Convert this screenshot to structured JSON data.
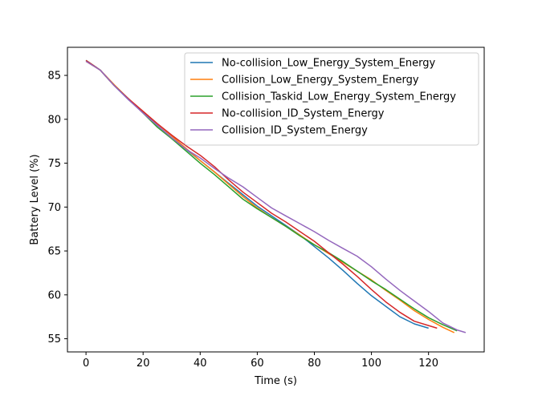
{
  "chart_data": {
    "type": "line",
    "title": "",
    "xlabel": "Time (s)",
    "ylabel": "Battery Level (%)",
    "xlim": [
      -6.5,
      139.5
    ],
    "ylim": [
      53.5,
      88.2
    ],
    "xticks": [
      0,
      20,
      40,
      60,
      80,
      100,
      120
    ],
    "yticks": [
      55,
      60,
      65,
      70,
      75,
      80,
      85
    ],
    "grid": false,
    "legend_position": "top-right",
    "series": [
      {
        "name": "No-collision_Low_Energy_System_Energy",
        "color": "#1f77b4",
        "x": [
          0,
          5,
          10,
          15,
          20,
          25,
          30,
          35,
          40,
          45,
          50,
          55,
          60,
          65,
          70,
          75,
          80,
          85,
          90,
          95,
          100,
          105,
          110,
          115,
          120
        ],
        "y": [
          86.7,
          85.6,
          83.8,
          82.2,
          80.8,
          79.3,
          77.9,
          76.6,
          75.3,
          74.0,
          72.7,
          71.4,
          70.1,
          69.0,
          67.9,
          66.8,
          65.5,
          64.2,
          62.8,
          61.3,
          59.9,
          58.7,
          57.5,
          56.7,
          56.2
        ]
      },
      {
        "name": "Collision_Low_Energy_System_Energy",
        "color": "#ff7f0e",
        "x": [
          0,
          5,
          10,
          15,
          20,
          25,
          30,
          35,
          40,
          45,
          50,
          55,
          60,
          65,
          70,
          75,
          80,
          85,
          90,
          95,
          100,
          105,
          110,
          115,
          120,
          125,
          129
        ],
        "y": [
          86.6,
          85.6,
          83.9,
          82.3,
          80.9,
          79.5,
          78.1,
          76.7,
          75.3,
          74.0,
          72.6,
          71.2,
          69.9,
          68.8,
          67.8,
          66.8,
          65.7,
          64.7,
          63.7,
          62.7,
          61.7,
          60.5,
          59.4,
          58.2,
          57.2,
          56.3,
          55.7
        ]
      },
      {
        "name": "Collision_Taskid_Low_Energy_System_Energy",
        "color": "#2ca02c",
        "x": [
          0,
          5,
          10,
          15,
          20,
          25,
          30,
          35,
          40,
          45,
          50,
          55,
          60,
          65,
          70,
          75,
          80,
          85,
          90,
          95,
          100,
          105,
          110,
          115,
          120,
          125,
          130
        ],
        "y": [
          86.7,
          85.6,
          83.8,
          82.3,
          80.7,
          79.1,
          77.8,
          76.4,
          75.0,
          73.7,
          72.3,
          70.9,
          69.8,
          68.8,
          67.8,
          66.7,
          65.7,
          64.8,
          63.8,
          62.7,
          61.6,
          60.6,
          59.5,
          58.4,
          57.4,
          56.6,
          55.9
        ]
      },
      {
        "name": "No-collision_ID_System_Energy",
        "color": "#d62728",
        "x": [
          0,
          5,
          10,
          15,
          20,
          25,
          30,
          35,
          40,
          45,
          50,
          55,
          60,
          65,
          70,
          75,
          80,
          85,
          90,
          95,
          100,
          105,
          110,
          115,
          120,
          123
        ],
        "y": [
          86.7,
          85.6,
          83.8,
          82.3,
          80.9,
          79.5,
          78.2,
          77.0,
          75.9,
          74.6,
          73.1,
          71.7,
          70.5,
          69.3,
          68.3,
          67.2,
          66.1,
          64.8,
          63.5,
          62.1,
          60.6,
          59.2,
          58.0,
          57.0,
          56.5,
          56.2
        ]
      },
      {
        "name": "Collision_ID_System_Energy",
        "color": "#9467bd",
        "x": [
          0,
          5,
          10,
          15,
          20,
          25,
          30,
          35,
          40,
          45,
          50,
          55,
          60,
          65,
          70,
          75,
          80,
          85,
          90,
          95,
          100,
          105,
          110,
          115,
          120,
          125,
          130,
          133
        ],
        "y": [
          86.6,
          85.6,
          83.8,
          82.2,
          80.7,
          79.3,
          77.9,
          76.6,
          75.6,
          74.4,
          73.3,
          72.3,
          71.1,
          69.9,
          69.0,
          68.1,
          67.2,
          66.2,
          65.3,
          64.4,
          63.2,
          61.8,
          60.5,
          59.3,
          58.1,
          56.8,
          56.0,
          55.7
        ]
      }
    ]
  }
}
